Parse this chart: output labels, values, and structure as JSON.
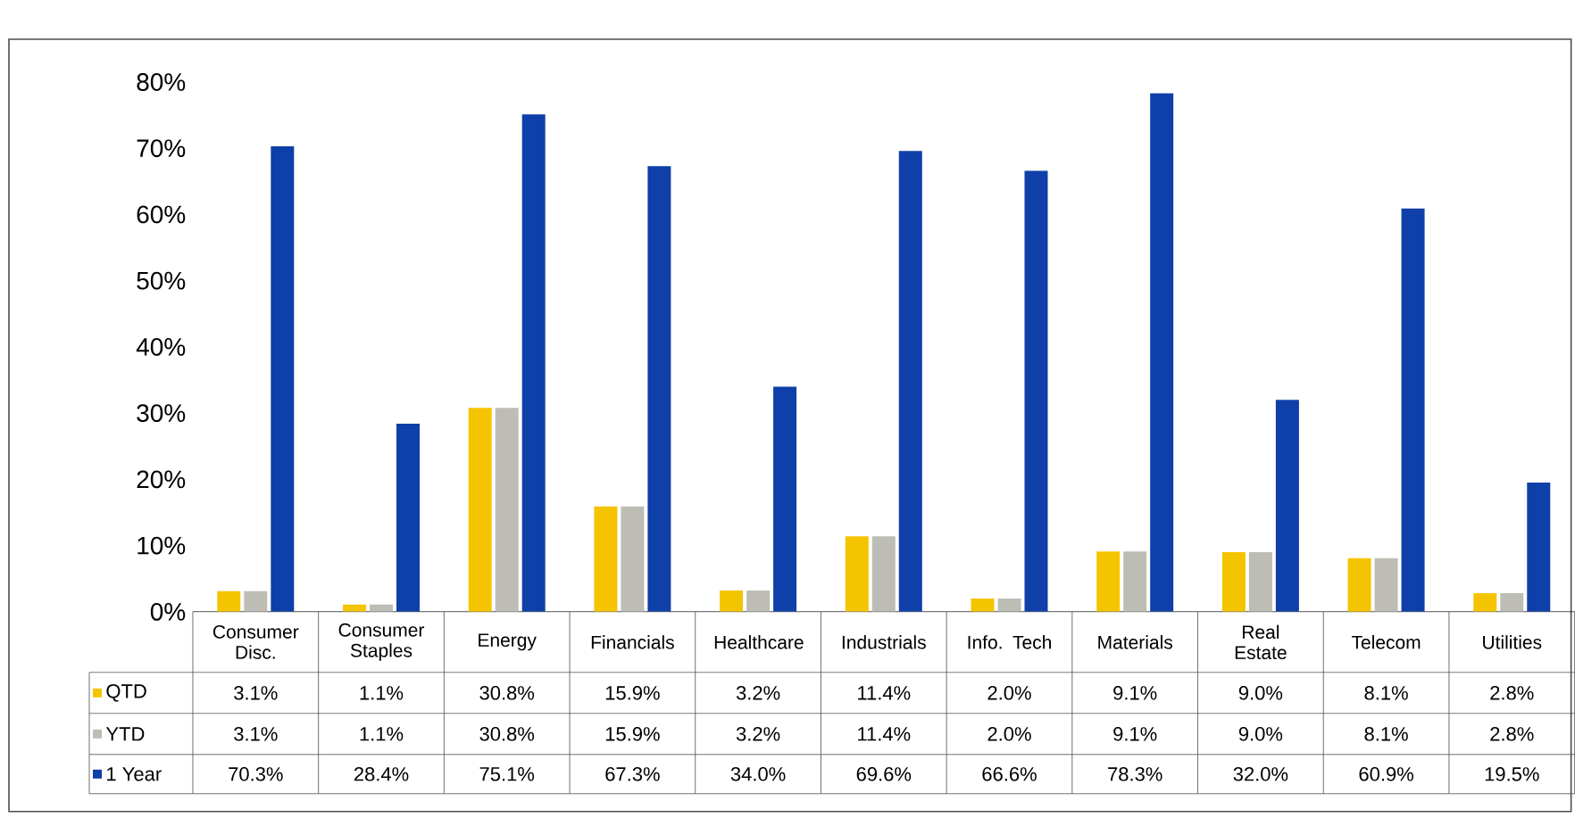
{
  "chart_data": {
    "type": "bar",
    "categories": [
      "Consumer Disc.",
      "Consumer Staples",
      "Energy",
      "Financials",
      "Healthcare",
      "Industrials",
      "Info. Tech",
      "Materials",
      "Real Estate",
      "Telecom",
      "Utilities"
    ],
    "series": [
      {
        "name": "QTD",
        "color": "#f5c400",
        "values": [
          3.1,
          1.1,
          30.8,
          15.9,
          3.2,
          11.4,
          2.0,
          9.1,
          9.0,
          8.1,
          2.8
        ],
        "value_labels": [
          "3.1%",
          "1.1%",
          "30.8%",
          "15.9%",
          "3.2%",
          "11.4%",
          "2.0%",
          "9.1%",
          "9.0%",
          "8.1%",
          "2.8%"
        ]
      },
      {
        "name": "YTD",
        "color": "#bdbdb5",
        "values": [
          3.1,
          1.1,
          30.8,
          15.9,
          3.2,
          11.4,
          2.0,
          9.1,
          9.0,
          8.1,
          2.8
        ],
        "value_labels": [
          "3.1%",
          "1.1%",
          "30.8%",
          "15.9%",
          "3.2%",
          "11.4%",
          "2.0%",
          "9.1%",
          "9.0%",
          "8.1%",
          "2.8%"
        ]
      },
      {
        "name": "1 Year",
        "color": "#0f3fa8",
        "values": [
          70.3,
          28.4,
          75.1,
          67.3,
          34.0,
          69.6,
          66.6,
          78.3,
          32.0,
          60.9,
          19.5
        ],
        "value_labels": [
          "70.3%",
          "28.4%",
          "75.1%",
          "67.3%",
          "34.0%",
          "69.6%",
          "66.6%",
          "78.3%",
          "32.0%",
          "60.9%",
          "19.5%"
        ]
      }
    ],
    "ylim": [
      0,
      80
    ],
    "yticks": [
      {
        "value": 0,
        "label": "0%"
      },
      {
        "value": 10,
        "label": "10%"
      },
      {
        "value": 20,
        "label": "20%"
      },
      {
        "value": 30,
        "label": "30%"
      },
      {
        "value": 40,
        "label": "40%"
      },
      {
        "value": 50,
        "label": "50%"
      },
      {
        "value": 60,
        "label": "60%"
      },
      {
        "value": 70,
        "label": "70%"
      },
      {
        "value": 80,
        "label": "80%"
      }
    ],
    "legend": "bottom left",
    "grid": false
  }
}
